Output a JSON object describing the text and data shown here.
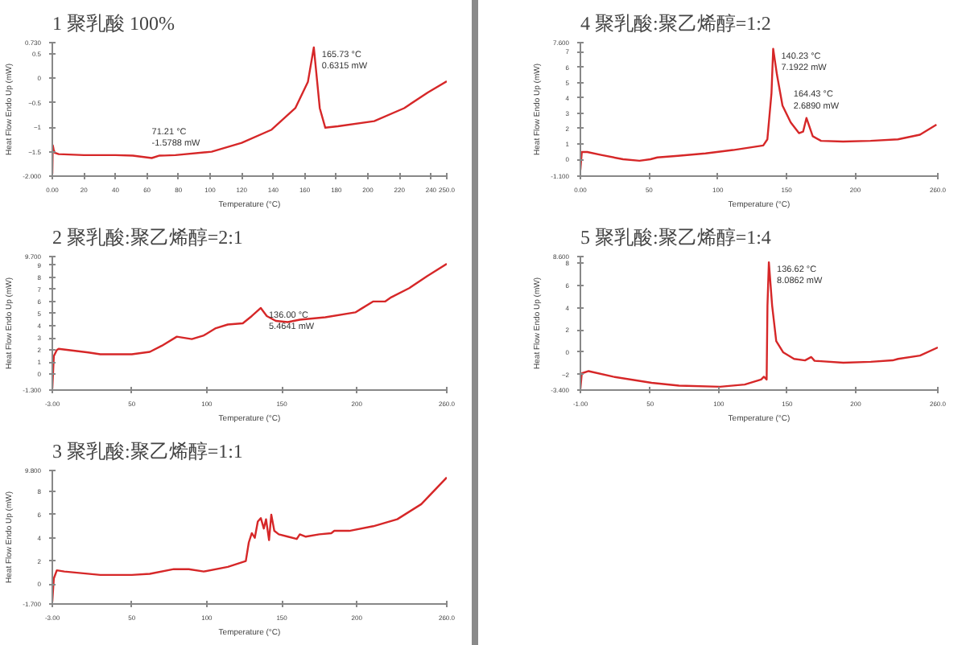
{
  "chart_data": [
    {
      "type": "line",
      "title": "1 聚乳酸 100%",
      "xlabel": "Temperature (°C)",
      "ylabel": "Heat Flow Endo Up (mW)",
      "xlim": [
        0,
        250
      ],
      "ylim": [
        -2.0,
        0.73
      ],
      "xticks": [
        {
          "value": 0,
          "label": "0.00"
        },
        20,
        40,
        60,
        80,
        100,
        120,
        140,
        160,
        180,
        200,
        220,
        240,
        {
          "value": 250,
          "label": "250.0"
        }
      ],
      "yticks": [
        {
          "value": -2.0,
          "label": "-2.000"
        },
        -1.5,
        -1.0,
        -0.5,
        0,
        0.5,
        {
          "value": 0.73,
          "label": "0.730"
        }
      ],
      "x": [
        0,
        0.3,
        0.8,
        1.5,
        4,
        20,
        40,
        51,
        63,
        68,
        71.21,
        78,
        101,
        120,
        139,
        154,
        162,
        165.73,
        169.5,
        173,
        181,
        204,
        223,
        238,
        250
      ],
      "series": [
        {
          "color": "#d62728",
          "values": [
            -1.95,
            -1.37,
            -1.45,
            -1.52,
            -1.55,
            -1.57,
            -1.57,
            -1.58,
            -1.63,
            -1.58,
            -1.5788,
            -1.57,
            -1.5,
            -1.32,
            -1.05,
            -0.61,
            -0.07,
            0.6315,
            -0.61,
            -1.01,
            -0.98,
            -0.875,
            -0.61,
            -0.29,
            -0.06
          ]
        }
      ],
      "annotations": [
        {
          "text": "165.73 °C\n0.6315 mW",
          "x": 165.73,
          "y": 0.6315
        },
        {
          "text": "71.21 °C\n-1.5788 mW",
          "x": 71.21,
          "y": -1.5788
        }
      ]
    },
    {
      "type": "line",
      "title": "2 聚乳酸:聚乙烯醇=2:1",
      "xlabel": "Temperature (°C)",
      "ylabel": "Heat Flow Endo Up (mW)",
      "xlim": [
        -3,
        260
      ],
      "ylim": [
        -1.3,
        9.7
      ],
      "xticks": [
        {
          "value": -3,
          "label": "-3.00"
        },
        50,
        100,
        150,
        200,
        {
          "value": 260,
          "label": "260.0"
        }
      ],
      "yticks": [
        {
          "value": -1.3,
          "label": "-1.300"
        },
        0,
        1,
        2,
        3,
        4,
        5,
        6,
        7,
        8,
        9,
        {
          "value": 9.7,
          "label": "9.700"
        }
      ],
      "x": [
        -3,
        -2,
        0,
        1.2,
        21,
        29,
        50,
        62,
        70,
        80,
        90,
        98,
        106,
        114,
        124,
        130,
        136,
        140,
        146,
        154,
        162,
        179,
        199,
        203,
        211,
        219,
        223,
        235,
        247,
        260
      ],
      "series": [
        {
          "color": "#d62728",
          "values": [
            -1.2,
            1.5,
            2.0,
            2.1,
            1.8,
            1.65,
            1.65,
            1.85,
            2.35,
            3.1,
            2.9,
            3.2,
            3.8,
            4.1,
            4.2,
            4.8,
            5.4641,
            4.8,
            4.4,
            4.3,
            4.5,
            4.7,
            5.1,
            5.4,
            6.0,
            6.0,
            6.35,
            7.1,
            8.1,
            9.1
          ]
        }
      ],
      "annotations": [
        {
          "text": "136.00 °C\n5.4641 mW",
          "x": 136,
          "y": 5.4641
        }
      ]
    },
    {
      "type": "line",
      "title": "3 聚乳酸:聚乙烯醇=1:1",
      "xlabel": "Temperature (°C)",
      "ylabel": "Heat Flow Endo Up (mW)",
      "xlim": [
        -3,
        260
      ],
      "ylim": [
        -1.7,
        9.8
      ],
      "xticks": [
        {
          "value": -3,
          "label": "-3.00"
        },
        50,
        100,
        150,
        200,
        {
          "value": 260,
          "label": "260.0"
        }
      ],
      "yticks": [
        {
          "value": -1.7,
          "label": "-1.700"
        },
        0,
        2,
        4,
        6,
        8,
        {
          "value": 9.8,
          "label": "9.800"
        }
      ],
      "x": [
        -3,
        -2,
        0,
        5,
        29,
        50,
        62,
        78,
        88,
        98,
        114,
        126,
        128,
        130,
        132,
        134,
        136,
        138,
        139.5,
        141.5,
        143,
        145,
        148,
        154,
        160,
        162,
        166,
        175,
        183,
        185,
        195,
        211,
        227,
        243,
        260
      ],
      "series": [
        {
          "color": "#d62728",
          "values": [
            -1.5,
            0.5,
            1.2,
            1.1,
            0.8,
            0.8,
            0.9,
            1.3,
            1.3,
            1.1,
            1.5,
            2.0,
            3.6,
            4.4,
            4.0,
            5.4,
            5.7,
            4.8,
            5.6,
            3.8,
            6.0,
            4.6,
            4.3,
            4.1,
            3.9,
            4.3,
            4.1,
            4.3,
            4.4,
            4.6,
            4.6,
            5.0,
            5.6,
            6.9,
            9.2
          ]
        }
      ]
    },
    {
      "type": "line",
      "title": "4 聚乳酸:聚乙烯醇=1:2",
      "xlabel": "Temperature (°C)",
      "ylabel": "Heat Flow Endo Up (mW)",
      "xlim": [
        0,
        260
      ],
      "ylim": [
        -1.1,
        7.6
      ],
      "xticks": [
        {
          "value": 0,
          "label": "0.00"
        },
        50,
        100,
        150,
        200,
        {
          "value": 260,
          "label": "260.0"
        }
      ],
      "yticks": [
        {
          "value": -1.1,
          "label": "-1.100"
        },
        0,
        1,
        2,
        3,
        4,
        5,
        6,
        7,
        {
          "value": 7.6,
          "label": "7.600"
        }
      ],
      "x": [
        0,
        1,
        5,
        15,
        31,
        43,
        51,
        56,
        71,
        91,
        111,
        133,
        136,
        139,
        140.23,
        143,
        147,
        153,
        159,
        162,
        164.43,
        169,
        175,
        191,
        211,
        231,
        247,
        259
      ],
      "series": [
        {
          "color": "#d62728",
          "values": [
            -0.7,
            0.47,
            0.47,
            0.28,
            0,
            -0.1,
            0,
            0.12,
            0.22,
            0.38,
            0.6,
            0.9,
            1.3,
            4.3,
            7.1922,
            5.5,
            3.5,
            2.4,
            1.7,
            1.8,
            2.689,
            1.5,
            1.2,
            1.15,
            1.2,
            1.3,
            1.6,
            2.25
          ]
        }
      ],
      "annotations": [
        {
          "text": "140.23 °C\n7.1922 mW",
          "x": 140.23,
          "y": 7.1922
        },
        {
          "text": "164.43 °C\n2.6890 mW",
          "x": 164.43,
          "y": 2.689
        }
      ]
    },
    {
      "type": "line",
      "title": "5 聚乳酸:聚乙烯醇=1:4",
      "xlabel": "Temperature (°C)",
      "ylabel": "Heat Flow Endo Up (mW)",
      "xlim": [
        -1,
        260
      ],
      "ylim": [
        -3.4,
        8.6
      ],
      "xticks": [
        {
          "value": -1,
          "label": "-1.00"
        },
        50,
        100,
        150,
        200,
        {
          "value": 260,
          "label": "260.0"
        }
      ],
      "yticks": [
        {
          "value": -3.4,
          "label": "-3.400"
        },
        -2,
        0,
        2,
        4,
        6,
        8,
        {
          "value": 8.6,
          "label": "8.600"
        }
      ],
      "x": [
        -1,
        0,
        5,
        23,
        51,
        71,
        101,
        119,
        131,
        133,
        135,
        135.6,
        136.62,
        139,
        142,
        147,
        155,
        163,
        167.6,
        170,
        191,
        211,
        227,
        231,
        247,
        260
      ],
      "series": [
        {
          "color": "#d62728",
          "values": [
            -3.3,
            -1.9,
            -1.7,
            -2.2,
            -2.75,
            -3.0,
            -3.1,
            -2.9,
            -2.45,
            -2.2,
            -2.45,
            4.2,
            8.0862,
            4.2,
            1.0,
            0,
            -0.6,
            -0.73,
            -0.43,
            -0.77,
            -0.94,
            -0.86,
            -0.73,
            -0.6,
            -0.3,
            0.43
          ]
        }
      ],
      "annotations": [
        {
          "text": "136.62 °C\n8.0862 mW",
          "x": 136.62,
          "y": 8.0862
        }
      ]
    }
  ]
}
